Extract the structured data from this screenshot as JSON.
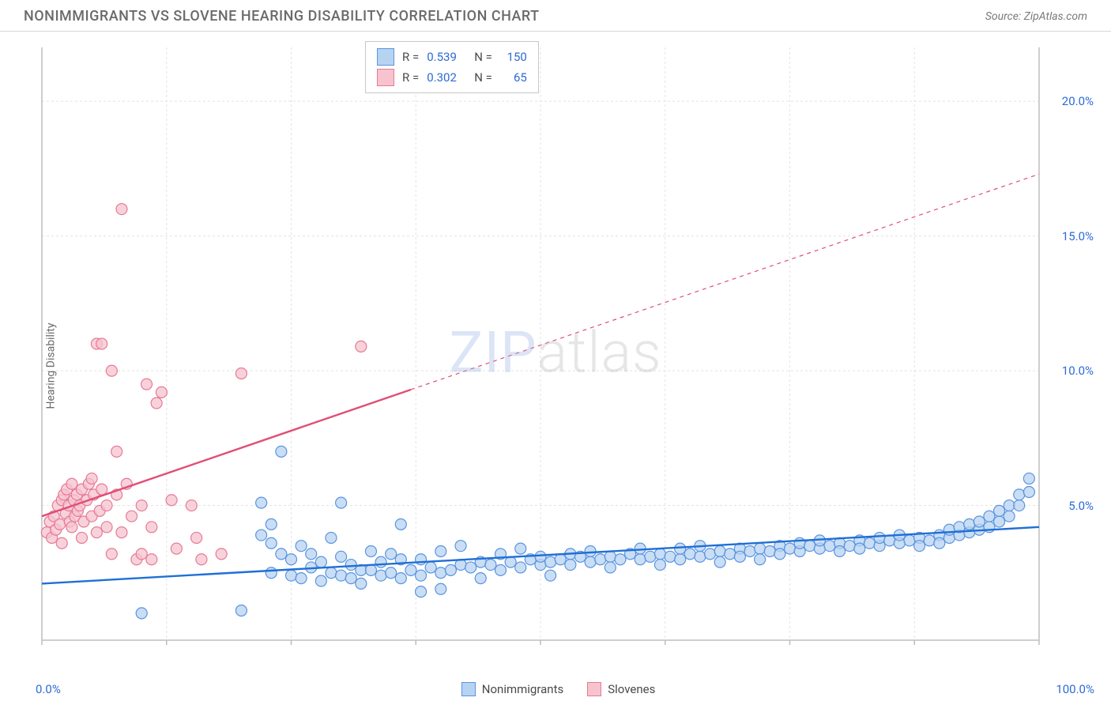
{
  "header": {
    "title": "NONIMMIGRANTS VS SLOVENE HEARING DISABILITY CORRELATION CHART",
    "source": "Source: ZipAtlas.com"
  },
  "watermark": {
    "part1": "ZIP",
    "part2": "atlas"
  },
  "y_axis_label": "Hearing Disability",
  "chart": {
    "type": "scatter",
    "xlim": [
      0,
      100
    ],
    "ylim": [
      0,
      22
    ],
    "x_ticks": [
      {
        "v": 0,
        "label": "0.0%"
      },
      {
        "v": 100,
        "label": "100.0%"
      }
    ],
    "y_ticks": [
      {
        "v": 5,
        "label": "5.0%"
      },
      {
        "v": 10,
        "label": "10.0%"
      },
      {
        "v": 15,
        "label": "15.0%"
      },
      {
        "v": 20,
        "label": "20.0%"
      }
    ],
    "grid_color": "#e3e3e3",
    "grid_dash": "3,3",
    "axis_color": "#bdbdbd",
    "background_color": "#ffffff",
    "marker_radius": 7,
    "marker_stroke_width": 1.2,
    "trendline_width": 2.4,
    "series": [
      {
        "name": "Nonimmigrants",
        "fill": "#b7d3f2",
        "stroke": "#5a94de",
        "trend_color": "#1f6fd6",
        "trend_dash": "none",
        "trend": {
          "x1": 0,
          "y1": 2.1,
          "x2": 100,
          "y2": 4.2
        },
        "stats": {
          "R": "0.539",
          "N": "150"
        },
        "points": [
          [
            10,
            1.0
          ],
          [
            20,
            1.1
          ],
          [
            22,
            3.9
          ],
          [
            22,
            5.1
          ],
          [
            23,
            2.5
          ],
          [
            23,
            3.6
          ],
          [
            23,
            4.3
          ],
          [
            24,
            3.2
          ],
          [
            24,
            7.0
          ],
          [
            25,
            2.4
          ],
          [
            25,
            3.0
          ],
          [
            26,
            2.3
          ],
          [
            26,
            3.5
          ],
          [
            27,
            2.7
          ],
          [
            27,
            3.2
          ],
          [
            28,
            2.2
          ],
          [
            28,
            2.9
          ],
          [
            29,
            2.5
          ],
          [
            29,
            3.8
          ],
          [
            30,
            2.4
          ],
          [
            30,
            3.1
          ],
          [
            30,
            5.1
          ],
          [
            31,
            2.3
          ],
          [
            31,
            2.8
          ],
          [
            32,
            2.1
          ],
          [
            32,
            2.6
          ],
          [
            33,
            2.6
          ],
          [
            33,
            3.3
          ],
          [
            34,
            2.4
          ],
          [
            34,
            2.9
          ],
          [
            35,
            2.5
          ],
          [
            35,
            3.2
          ],
          [
            36,
            2.3
          ],
          [
            36,
            3.0
          ],
          [
            36,
            4.3
          ],
          [
            37,
            2.6
          ],
          [
            38,
            2.4
          ],
          [
            38,
            3.0
          ],
          [
            38,
            1.8
          ],
          [
            39,
            2.7
          ],
          [
            40,
            2.5
          ],
          [
            40,
            3.3
          ],
          [
            40,
            1.9
          ],
          [
            41,
            2.6
          ],
          [
            42,
            2.8
          ],
          [
            42,
            3.5
          ],
          [
            43,
            2.7
          ],
          [
            44,
            2.9
          ],
          [
            44,
            2.3
          ],
          [
            45,
            2.8
          ],
          [
            46,
            2.6
          ],
          [
            46,
            3.2
          ],
          [
            47,
            2.9
          ],
          [
            48,
            2.7
          ],
          [
            48,
            3.4
          ],
          [
            49,
            3.0
          ],
          [
            50,
            2.8
          ],
          [
            50,
            3.1
          ],
          [
            51,
            2.9
          ],
          [
            51,
            2.4
          ],
          [
            52,
            3.0
          ],
          [
            53,
            2.8
          ],
          [
            53,
            3.2
          ],
          [
            54,
            3.1
          ],
          [
            55,
            2.9
          ],
          [
            55,
            3.3
          ],
          [
            56,
            3.0
          ],
          [
            57,
            3.1
          ],
          [
            57,
            2.7
          ],
          [
            58,
            3.0
          ],
          [
            59,
            3.2
          ],
          [
            60,
            3.0
          ],
          [
            60,
            3.4
          ],
          [
            61,
            3.1
          ],
          [
            62,
            3.2
          ],
          [
            62,
            2.8
          ],
          [
            63,
            3.1
          ],
          [
            64,
            3.0
          ],
          [
            64,
            3.4
          ],
          [
            65,
            3.2
          ],
          [
            66,
            3.1
          ],
          [
            66,
            3.5
          ],
          [
            67,
            3.2
          ],
          [
            68,
            3.3
          ],
          [
            68,
            2.9
          ],
          [
            69,
            3.2
          ],
          [
            70,
            3.4
          ],
          [
            70,
            3.1
          ],
          [
            71,
            3.3
          ],
          [
            72,
            3.4
          ],
          [
            72,
            3.0
          ],
          [
            73,
            3.3
          ],
          [
            74,
            3.5
          ],
          [
            74,
            3.2
          ],
          [
            75,
            3.4
          ],
          [
            76,
            3.3
          ],
          [
            76,
            3.6
          ],
          [
            77,
            3.5
          ],
          [
            78,
            3.4
          ],
          [
            78,
            3.7
          ],
          [
            79,
            3.5
          ],
          [
            80,
            3.6
          ],
          [
            80,
            3.3
          ],
          [
            81,
            3.5
          ],
          [
            82,
            3.7
          ],
          [
            82,
            3.4
          ],
          [
            83,
            3.6
          ],
          [
            84,
            3.5
          ],
          [
            84,
            3.8
          ],
          [
            85,
            3.7
          ],
          [
            86,
            3.6
          ],
          [
            86,
            3.9
          ],
          [
            87,
            3.7
          ],
          [
            88,
            3.8
          ],
          [
            88,
            3.5
          ],
          [
            89,
            3.7
          ],
          [
            90,
            3.9
          ],
          [
            90,
            3.6
          ],
          [
            91,
            3.8
          ],
          [
            91,
            4.1
          ],
          [
            92,
            3.9
          ],
          [
            92,
            4.2
          ],
          [
            93,
            4.0
          ],
          [
            93,
            4.3
          ],
          [
            94,
            4.1
          ],
          [
            94,
            4.4
          ],
          [
            95,
            4.2
          ],
          [
            95,
            4.6
          ],
          [
            96,
            4.4
          ],
          [
            96,
            4.8
          ],
          [
            97,
            4.6
          ],
          [
            97,
            5.0
          ],
          [
            98,
            5.0
          ],
          [
            98,
            5.4
          ],
          [
            99,
            5.5
          ],
          [
            99,
            6.0
          ]
        ]
      },
      {
        "name": "Slovenes",
        "fill": "#f6c3cf",
        "stroke": "#e77a96",
        "trend_color": "#e04f75",
        "trend_dash": "5,5",
        "trend_solid_until": 37,
        "trend": {
          "x1": 0,
          "y1": 4.6,
          "x2": 100,
          "y2": 17.3
        },
        "stats": {
          "R": "0.302",
          "N": "65"
        },
        "points": [
          [
            0.5,
            4.0
          ],
          [
            0.8,
            4.4
          ],
          [
            1.0,
            3.8
          ],
          [
            1.2,
            4.6
          ],
          [
            1.4,
            4.1
          ],
          [
            1.6,
            5.0
          ],
          [
            1.8,
            4.3
          ],
          [
            2.0,
            5.2
          ],
          [
            2.0,
            3.6
          ],
          [
            2.2,
            5.4
          ],
          [
            2.4,
            4.7
          ],
          [
            2.5,
            5.6
          ],
          [
            2.7,
            5.0
          ],
          [
            2.8,
            4.4
          ],
          [
            3.0,
            5.8
          ],
          [
            3.0,
            4.2
          ],
          [
            3.2,
            5.2
          ],
          [
            3.3,
            4.6
          ],
          [
            3.5,
            5.4
          ],
          [
            3.6,
            4.8
          ],
          [
            3.8,
            5.0
          ],
          [
            4.0,
            5.6
          ],
          [
            4.0,
            3.8
          ],
          [
            4.2,
            4.4
          ],
          [
            4.5,
            5.2
          ],
          [
            4.7,
            5.8
          ],
          [
            5.0,
            4.6
          ],
          [
            5.0,
            6.0
          ],
          [
            5.2,
            5.4
          ],
          [
            5.5,
            4.0
          ],
          [
            5.5,
            11.0
          ],
          [
            5.8,
            4.8
          ],
          [
            6.0,
            5.6
          ],
          [
            6.0,
            11.0
          ],
          [
            6.5,
            5.0
          ],
          [
            6.5,
            4.2
          ],
          [
            7.0,
            3.2
          ],
          [
            7.0,
            10.0
          ],
          [
            7.5,
            7.0
          ],
          [
            7.5,
            5.4
          ],
          [
            8.0,
            4.0
          ],
          [
            8.5,
            5.8
          ],
          [
            8.0,
            16.0
          ],
          [
            9.0,
            4.6
          ],
          [
            9.5,
            3.0
          ],
          [
            10.0,
            5.0
          ],
          [
            10.0,
            3.2
          ],
          [
            10.5,
            9.5
          ],
          [
            11.0,
            4.2
          ],
          [
            11.0,
            3.0
          ],
          [
            11.5,
            8.8
          ],
          [
            12.0,
            9.2
          ],
          [
            13.0,
            5.2
          ],
          [
            13.5,
            3.4
          ],
          [
            15.0,
            5.0
          ],
          [
            15.5,
            3.8
          ],
          [
            16.0,
            3.0
          ],
          [
            18.0,
            3.2
          ],
          [
            20.0,
            9.9
          ],
          [
            32.0,
            10.9
          ]
        ]
      }
    ]
  },
  "category_legend": [
    {
      "label": "Nonimmigrants",
      "fill": "#b7d3f2",
      "stroke": "#5a94de"
    },
    {
      "label": "Slovenes",
      "fill": "#f6c3cf",
      "stroke": "#e77a96"
    }
  ]
}
